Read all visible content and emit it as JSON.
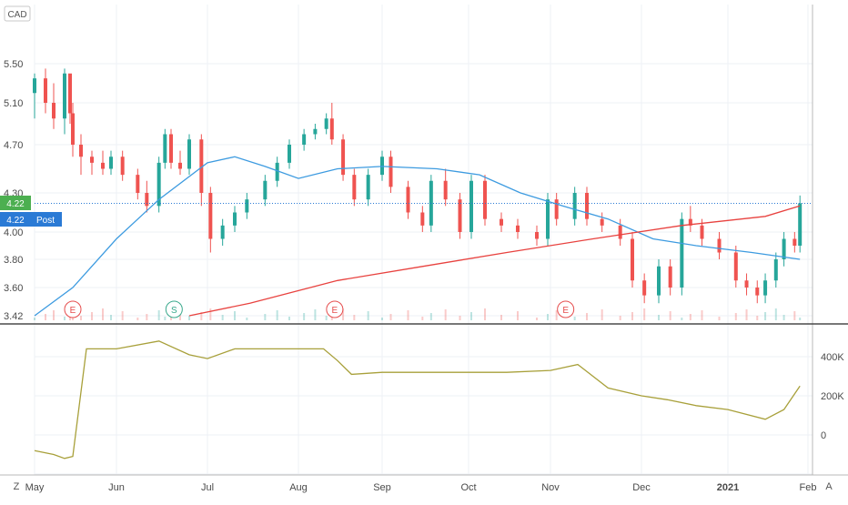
{
  "currency_badge": "CAD",
  "price_tag": "4.22",
  "post_tag_value": "4.22",
  "post_tag_label": "Post",
  "scale_labels": {
    "left": "Z",
    "right": "A"
  },
  "colors": {
    "up": "#26a69a",
    "down": "#ef5350",
    "ma_fast": "#3d9be0",
    "ma_slow": "#e8423f",
    "indicator": "#a8a03a",
    "price_line": "#2a7ad5",
    "grid": "#eef1f5",
    "text": "#4a4a4a",
    "event_earnings": "#e54c4c",
    "event_split": "#38a88b"
  },
  "events": [
    {
      "label": "E",
      "type": "earnings",
      "x": "May 15"
    },
    {
      "label": "S",
      "type": "split",
      "x": "Jun 20"
    },
    {
      "label": "E",
      "type": "earnings",
      "x": "Aug 14"
    },
    {
      "label": "E",
      "type": "earnings",
      "x": "Nov 6"
    }
  ],
  "chart_data": [
    {
      "type": "candlestick",
      "yticks": [
        "5.50",
        "5.10",
        "4.70",
        "4.30",
        "4.00",
        "3.80",
        "3.60",
        "3.42"
      ],
      "ylim": [
        3.4,
        5.8
      ],
      "xticks": [
        "May",
        "Jun",
        "Jul",
        "Aug",
        "Sep",
        "Oct",
        "Nov",
        "Dec",
        "2021",
        "Feb"
      ],
      "last_price": 4.22,
      "ohlc": [
        [
          "May 1",
          5.2,
          5.6,
          4.95,
          5.35
        ],
        [
          "May 5",
          5.35,
          5.45,
          5.0,
          5.1
        ],
        [
          "May 8",
          5.1,
          5.3,
          4.85,
          4.95
        ],
        [
          "May 12",
          4.95,
          5.55,
          4.8,
          5.4
        ],
        [
          "May 14",
          5.4,
          5.8,
          4.9,
          5.0
        ],
        [
          "May 15",
          5.0,
          5.9,
          4.6,
          4.7
        ],
        [
          "May 18",
          4.7,
          4.8,
          4.45,
          4.6
        ],
        [
          "May 22",
          4.6,
          4.65,
          4.45,
          4.55
        ],
        [
          "May 26",
          4.55,
          4.65,
          4.45,
          4.5
        ],
        [
          "May 29",
          4.5,
          4.65,
          4.45,
          4.6
        ],
        [
          "Jun 3",
          4.6,
          4.65,
          4.4,
          4.45
        ],
        [
          "Jun 8",
          4.45,
          4.5,
          4.25,
          4.3
        ],
        [
          "Jun 11",
          4.3,
          4.4,
          4.15,
          4.2
        ],
        [
          "Jun 15",
          4.2,
          4.6,
          4.15,
          4.55
        ],
        [
          "Jun 17",
          4.55,
          4.85,
          4.5,
          4.8
        ],
        [
          "Jun 19",
          4.8,
          4.85,
          4.5,
          4.55
        ],
        [
          "Jun 22",
          4.55,
          4.65,
          4.45,
          4.5
        ],
        [
          "Jun 25",
          4.5,
          4.8,
          4.45,
          4.75
        ],
        [
          "Jun 29",
          4.75,
          4.8,
          4.2,
          4.3
        ],
        [
          "Jul 2",
          4.3,
          4.35,
          3.85,
          3.95
        ],
        [
          "Jul 6",
          3.95,
          4.1,
          3.9,
          4.05
        ],
        [
          "Jul 10",
          4.05,
          4.2,
          4.0,
          4.15
        ],
        [
          "Jul 14",
          4.15,
          4.3,
          4.1,
          4.25
        ],
        [
          "Jul 20",
          4.25,
          4.45,
          4.2,
          4.4
        ],
        [
          "Jul 24",
          4.4,
          4.6,
          4.35,
          4.55
        ],
        [
          "Jul 28",
          4.55,
          4.75,
          4.5,
          4.7
        ],
        [
          "Aug 3",
          4.7,
          4.85,
          4.65,
          4.8
        ],
        [
          "Aug 7",
          4.8,
          4.9,
          4.75,
          4.85
        ],
        [
          "Aug 11",
          4.85,
          5.0,
          4.8,
          4.95
        ],
        [
          "Aug 13",
          4.95,
          5.1,
          4.7,
          4.75
        ],
        [
          "Aug 17",
          4.75,
          4.8,
          4.4,
          4.45
        ],
        [
          "Aug 21",
          4.45,
          4.5,
          4.2,
          4.25
        ],
        [
          "Aug 26",
          4.25,
          4.5,
          4.2,
          4.45
        ],
        [
          "Aug 31",
          4.45,
          4.65,
          4.4,
          4.6
        ],
        [
          "Sep 4",
          4.6,
          4.65,
          4.3,
          4.35
        ],
        [
          "Sep 10",
          4.35,
          4.4,
          4.1,
          4.15
        ],
        [
          "Sep 15",
          4.15,
          4.2,
          4.0,
          4.05
        ],
        [
          "Sep 18",
          4.05,
          4.45,
          4.0,
          4.4
        ],
        [
          "Sep 23",
          4.4,
          4.5,
          4.2,
          4.25
        ],
        [
          "Sep 28",
          4.25,
          4.3,
          3.95,
          4.0
        ],
        [
          "Oct 2",
          4.0,
          4.45,
          3.95,
          4.4
        ],
        [
          "Oct 7",
          4.4,
          4.45,
          4.05,
          4.1
        ],
        [
          "Oct 13",
          4.1,
          4.15,
          4.0,
          4.05
        ],
        [
          "Oct 19",
          4.05,
          4.1,
          3.95,
          4.0
        ],
        [
          "Oct 26",
          4.0,
          4.05,
          3.9,
          3.95
        ],
        [
          "Oct 30",
          3.95,
          4.3,
          3.9,
          4.25
        ],
        [
          "Nov 3",
          4.25,
          4.3,
          4.05,
          4.1
        ],
        [
          "Nov 9",
          4.1,
          4.35,
          4.05,
          4.3
        ],
        [
          "Nov 13",
          4.3,
          4.35,
          4.05,
          4.1
        ],
        [
          "Nov 18",
          4.1,
          4.15,
          4.0,
          4.05
        ],
        [
          "Nov 24",
          4.05,
          4.1,
          3.9,
          3.95
        ],
        [
          "Nov 28",
          3.95,
          4.0,
          3.6,
          3.65
        ],
        [
          "Dec 2",
          3.65,
          3.7,
          3.5,
          3.55
        ],
        [
          "Dec 7",
          3.55,
          3.8,
          3.5,
          3.75
        ],
        [
          "Dec 11",
          3.75,
          3.8,
          3.55,
          3.6
        ],
        [
          "Dec 15",
          3.6,
          4.15,
          3.55,
          4.1
        ],
        [
          "Dec 18",
          4.1,
          4.2,
          4.0,
          4.05
        ],
        [
          "Dec 22",
          4.05,
          4.1,
          3.9,
          3.95
        ],
        [
          "Dec 28",
          3.95,
          4.0,
          3.8,
          3.85
        ],
        [
          "Jan 4",
          3.85,
          3.9,
          3.6,
          3.65
        ],
        [
          "Jan 8",
          3.65,
          3.7,
          3.55,
          3.6
        ],
        [
          "Jan 12",
          3.6,
          3.65,
          3.5,
          3.55
        ],
        [
          "Jan 15",
          3.55,
          3.7,
          3.5,
          3.65
        ],
        [
          "Jan 19",
          3.65,
          3.85,
          3.6,
          3.8
        ],
        [
          "Jan 22",
          3.8,
          4.0,
          3.75,
          3.95
        ],
        [
          "Jan 26",
          3.95,
          4.0,
          3.85,
          3.9
        ],
        [
          "Jan 28",
          3.9,
          4.28,
          3.85,
          4.22
        ]
      ],
      "ma_fast": [
        [
          "May 1",
          3.42
        ],
        [
          "May 15",
          3.6
        ],
        [
          "Jun 1",
          3.95
        ],
        [
          "Jun 15",
          4.25
        ],
        [
          "Jul 1",
          4.55
        ],
        [
          "Jul 10",
          4.6
        ],
        [
          "Jul 20",
          4.52
        ],
        [
          "Aug 1",
          4.42
        ],
        [
          "Aug 15",
          4.5
        ],
        [
          "Sep 1",
          4.52
        ],
        [
          "Sep 20",
          4.5
        ],
        [
          "Oct 5",
          4.45
        ],
        [
          "Oct 20",
          4.3
        ],
        [
          "Nov 5",
          4.2
        ],
        [
          "Nov 20",
          4.1
        ],
        [
          "Dec 5",
          3.95
        ],
        [
          "Dec 20",
          3.9
        ],
        [
          "Jan 10",
          3.85
        ],
        [
          "Jan 28",
          3.8
        ]
      ],
      "ma_slow": [
        [
          "Jun 25",
          3.42
        ],
        [
          "Jul 15",
          3.5
        ],
        [
          "Aug 15",
          3.65
        ],
        [
          "Sep 15",
          3.75
        ],
        [
          "Oct 15",
          3.85
        ],
        [
          "Nov 15",
          3.95
        ],
        [
          "Dec 15",
          4.05
        ],
        [
          "Jan 15",
          4.12
        ],
        [
          "Jan 28",
          4.2
        ]
      ]
    },
    {
      "type": "line",
      "yticks": [
        "400K",
        "200K",
        "0"
      ],
      "ylim": [
        -200000,
        500000
      ],
      "x": [
        "May 1",
        "May 8",
        "May 12",
        "May 15",
        "May 20",
        "Jun 1",
        "Jun 15",
        "Jun 25",
        "Jul 1",
        "Jul 10",
        "Jul 20",
        "Aug 1",
        "Aug 10",
        "Aug 15",
        "Aug 20",
        "Sep 1",
        "Sep 15",
        "Oct 1",
        "Oct 15",
        "Nov 1",
        "Nov 10",
        "Nov 20",
        "Dec 1",
        "Dec 10",
        "Dec 20",
        "Jan 1",
        "Jan 15",
        "Jan 22",
        "Jan 28"
      ],
      "values": [
        -80000,
        -100000,
        -120000,
        -110000,
        440000,
        440000,
        480000,
        410000,
        390000,
        440000,
        440000,
        440000,
        440000,
        380000,
        310000,
        320000,
        320000,
        320000,
        320000,
        330000,
        360000,
        240000,
        200000,
        180000,
        150000,
        130000,
        80000,
        130000,
        250000
      ]
    }
  ]
}
